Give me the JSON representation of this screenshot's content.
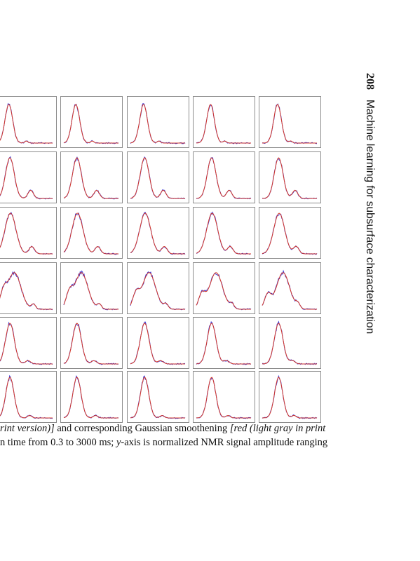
{
  "header": {
    "page_number": "208",
    "running_title": "Machine learning for subsurface characterization"
  },
  "figure": {
    "rows": 6,
    "columns": 5,
    "colors": {
      "measured": "#3a3ad6",
      "smoothed": "#d63a2a",
      "frame": "#8c8c8c"
    },
    "row_shapes": [
      "single_peak",
      "peak_with_bump",
      "broad_peak_bump",
      "noisy_shoulder",
      "single_peak_tail",
      "narrow_peak"
    ]
  },
  "caption": {
    "line1_italic_a": "rint version)]",
    "line1_normal": " and corresponding Gaussian smoothening ",
    "line1_italic_b": "[red (light gray in print",
    "line2_a": "n time from 0.3 to 3000 ms; ",
    "line2_italic": "y",
    "line2_b": "-axis is normalized NMR signal amplitude ranging"
  }
}
